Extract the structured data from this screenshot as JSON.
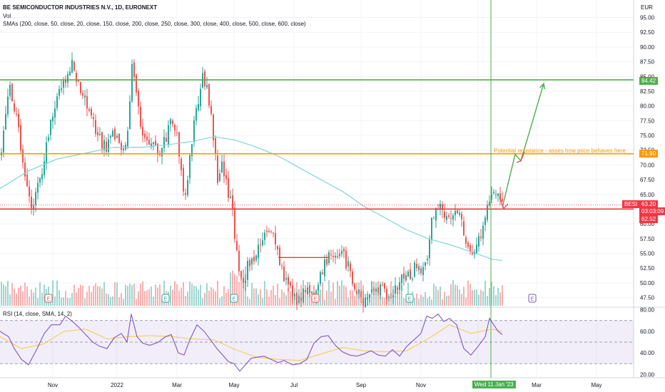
{
  "header": {
    "title": "BE SEMICONDUCTOR INDUSTRIES N.V., 1D, EURONEXT",
    "volume_label": "Vol",
    "sma_label": "SMAs (200, close, 50, close, 20, close, 150, close, 200, close, 250, close, 300, close, 400, close, 500, close, 600, close)",
    "currency": "EUR"
  },
  "price_axis": {
    "ticks": [
      "95.00",
      "92.50",
      "90.00",
      "87.50",
      "85.00",
      "82.50",
      "80.00",
      "77.50",
      "75.00",
      "72.50",
      "70.00",
      "67.50",
      "65.00",
      "62.50",
      "60.00",
      "57.50",
      "55.00",
      "52.50",
      "50.00",
      "47.50"
    ],
    "range": [
      46,
      97
    ]
  },
  "rsi_axis": {
    "label": "RSI (14, close, SMA, 14, 2)",
    "ticks": [
      "80.00",
      "60.00",
      "40.00",
      "20.00"
    ],
    "range": [
      17,
      81
    ],
    "band_upper": 70,
    "band_lower": 30,
    "mid": 50
  },
  "time_axis": {
    "labels": [
      "Nov",
      "2022",
      "Mar",
      "May",
      "Jul",
      "Sep",
      "Nov",
      "Mar",
      "May"
    ],
    "cursor_label": "Wed 11 Jan '23"
  },
  "price_tags": {
    "green_level": "84.42",
    "orange_level": "71.90",
    "symbol": "BESI",
    "last_price": "63.20",
    "countdown": "03:03:09",
    "red_level": "62.52"
  },
  "annotation": "Potential resistance - asses how price behaves here",
  "earnings_marker": "E",
  "colors": {
    "up": "#26a69a",
    "down": "#ef5350",
    "sma": "#7fd6d6",
    "green_line": "#4caf50",
    "orange_line": "#ff9800",
    "red_line": "#f23645",
    "rsi_line": "#7e57c2",
    "rsi_sma": "#f5c842",
    "cursor": "#4caf50"
  },
  "chart_data": {
    "type": "candlestick",
    "symbol": "BESI",
    "levels": {
      "resistance_green": 84.42,
      "resistance_orange": 71.9,
      "support_red": 62.52
    },
    "last_price": 63.2,
    "price_path": [
      [
        0,
        72
      ],
      [
        6,
        79
      ],
      [
        12,
        83
      ],
      [
        20,
        79
      ],
      [
        27,
        74
      ],
      [
        32,
        70
      ],
      [
        38,
        66
      ],
      [
        44,
        63
      ],
      [
        50,
        65
      ],
      [
        56,
        68
      ],
      [
        62,
        72
      ],
      [
        68,
        76
      ],
      [
        76,
        80
      ],
      [
        84,
        83
      ],
      [
        92,
        85
      ],
      [
        100,
        87
      ],
      [
        108,
        84
      ],
      [
        116,
        82
      ],
      [
        124,
        79
      ],
      [
        132,
        76
      ],
      [
        140,
        74
      ],
      [
        148,
        73
      ],
      [
        156,
        76
      ],
      [
        164,
        74
      ],
      [
        172,
        72
      ],
      [
        178,
        75
      ],
      [
        184,
        88
      ],
      [
        190,
        82
      ],
      [
        198,
        76
      ],
      [
        206,
        73
      ],
      [
        214,
        74
      ],
      [
        222,
        72
      ],
      [
        230,
        74
      ],
      [
        238,
        77
      ],
      [
        246,
        76
      ],
      [
        252,
        70
      ],
      [
        258,
        64
      ],
      [
        264,
        70
      ],
      [
        272,
        78
      ],
      [
        278,
        82
      ],
      [
        284,
        85
      ],
      [
        290,
        82
      ],
      [
        298,
        75
      ],
      [
        304,
        68
      ],
      [
        310,
        70
      ],
      [
        318,
        66
      ],
      [
        324,
        63
      ],
      [
        328,
        58
      ],
      [
        334,
        51
      ],
      [
        340,
        49
      ],
      [
        346,
        53
      ],
      [
        352,
        54
      ],
      [
        358,
        55
      ],
      [
        366,
        57
      ],
      [
        374,
        59
      ],
      [
        382,
        58
      ],
      [
        390,
        54
      ],
      [
        398,
        50
      ],
      [
        406,
        49
      ],
      [
        414,
        47
      ],
      [
        422,
        48
      ],
      [
        430,
        49
      ],
      [
        438,
        48
      ],
      [
        446,
        50
      ],
      [
        454,
        53
      ],
      [
        462,
        55
      ],
      [
        470,
        54
      ],
      [
        478,
        55
      ],
      [
        486,
        53
      ],
      [
        494,
        50
      ],
      [
        502,
        48
      ],
      [
        510,
        47
      ],
      [
        518,
        49
      ],
      [
        526,
        48
      ],
      [
        534,
        49
      ],
      [
        542,
        47
      ],
      [
        550,
        48
      ],
      [
        558,
        50
      ],
      [
        566,
        52
      ],
      [
        574,
        51
      ],
      [
        582,
        53
      ],
      [
        590,
        51
      ],
      [
        598,
        55
      ],
      [
        604,
        60
      ],
      [
        610,
        62
      ],
      [
        618,
        63
      ],
      [
        626,
        61
      ],
      [
        634,
        62
      ],
      [
        642,
        63
      ],
      [
        648,
        59
      ],
      [
        654,
        57
      ],
      [
        660,
        56
      ],
      [
        666,
        55
      ],
      [
        672,
        58
      ],
      [
        678,
        61
      ],
      [
        684,
        64
      ],
      [
        688,
        66
      ],
      [
        694,
        65
      ],
      [
        700,
        64
      ],
      [
        704,
        63.2
      ]
    ],
    "sma_path": [
      [
        0,
        66
      ],
      [
        40,
        69
      ],
      [
        80,
        71
      ],
      [
        120,
        72
      ],
      [
        160,
        73
      ],
      [
        200,
        73
      ],
      [
        240,
        73.5
      ],
      [
        270,
        74
      ],
      [
        300,
        74.8
      ],
      [
        330,
        74.2
      ],
      [
        360,
        73
      ],
      [
        390,
        71.5
      ],
      [
        420,
        69.5
      ],
      [
        450,
        67.5
      ],
      [
        480,
        65.5
      ],
      [
        510,
        63
      ],
      [
        540,
        61
      ],
      [
        570,
        59
      ],
      [
        600,
        57.5
      ],
      [
        630,
        56.5
      ],
      [
        660,
        55.3
      ],
      [
        690,
        54
      ],
      [
        704,
        53.8
      ]
    ],
    "projection": [
      [
        704,
        62.8
      ],
      [
        722,
        71.8
      ],
      [
        730,
        70.7
      ],
      [
        762,
        83.8
      ]
    ],
    "rsi_path": [
      [
        0,
        60
      ],
      [
        12,
        55
      ],
      [
        20,
        44
      ],
      [
        30,
        34
      ],
      [
        40,
        29
      ],
      [
        52,
        44
      ],
      [
        62,
        58
      ],
      [
        72,
        66
      ],
      [
        84,
        66
      ],
      [
        92,
        74
      ],
      [
        100,
        70
      ],
      [
        110,
        64
      ],
      [
        120,
        57
      ],
      [
        130,
        50
      ],
      [
        140,
        46
      ],
      [
        150,
        44
      ],
      [
        160,
        54
      ],
      [
        170,
        58
      ],
      [
        178,
        50
      ],
      [
        184,
        76
      ],
      [
        192,
        55
      ],
      [
        200,
        49
      ],
      [
        210,
        47
      ],
      [
        222,
        50
      ],
      [
        232,
        55
      ],
      [
        240,
        57
      ],
      [
        250,
        40
      ],
      [
        258,
        38
      ],
      [
        266,
        52
      ],
      [
        276,
        66
      ],
      [
        286,
        60
      ],
      [
        294,
        53
      ],
      [
        304,
        44
      ],
      [
        312,
        38
      ],
      [
        320,
        32
      ],
      [
        328,
        30
      ],
      [
        336,
        23
      ],
      [
        344,
        29
      ],
      [
        352,
        35
      ],
      [
        360,
        36
      ],
      [
        370,
        37
      ],
      [
        380,
        34
      ],
      [
        390,
        31
      ],
      [
        398,
        33
      ],
      [
        410,
        29
      ],
      [
        420,
        30
      ],
      [
        430,
        34
      ],
      [
        440,
        49
      ],
      [
        450,
        55
      ],
      [
        460,
        56
      ],
      [
        470,
        47
      ],
      [
        480,
        41
      ],
      [
        490,
        38
      ],
      [
        500,
        37
      ],
      [
        510,
        39
      ],
      [
        520,
        42
      ],
      [
        530,
        38
      ],
      [
        540,
        37
      ],
      [
        550,
        43
      ],
      [
        560,
        37
      ],
      [
        570,
        46
      ],
      [
        580,
        52
      ],
      [
        590,
        58
      ],
      [
        598,
        74
      ],
      [
        606,
        72
      ],
      [
        614,
        76
      ],
      [
        622,
        69
      ],
      [
        630,
        72
      ],
      [
        640,
        66
      ],
      [
        650,
        44
      ],
      [
        660,
        38
      ],
      [
        670,
        46
      ],
      [
        680,
        55
      ],
      [
        686,
        72
      ],
      [
        692,
        66
      ],
      [
        698,
        60
      ],
      [
        704,
        57
      ]
    ],
    "rsi_sma_path": [
      [
        0,
        55
      ],
      [
        30,
        44
      ],
      [
        60,
        48
      ],
      [
        90,
        60
      ],
      [
        120,
        62
      ],
      [
        150,
        53
      ],
      [
        180,
        55
      ],
      [
        210,
        56
      ],
      [
        240,
        55
      ],
      [
        270,
        53
      ],
      [
        300,
        52
      ],
      [
        330,
        43
      ],
      [
        360,
        36
      ],
      [
        390,
        34
      ],
      [
        420,
        33
      ],
      [
        450,
        39
      ],
      [
        480,
        45
      ],
      [
        510,
        42
      ],
      [
        540,
        41
      ],
      [
        570,
        42
      ],
      [
        600,
        53
      ],
      [
        630,
        66
      ],
      [
        660,
        58
      ],
      [
        690,
        62
      ],
      [
        704,
        60
      ]
    ]
  }
}
